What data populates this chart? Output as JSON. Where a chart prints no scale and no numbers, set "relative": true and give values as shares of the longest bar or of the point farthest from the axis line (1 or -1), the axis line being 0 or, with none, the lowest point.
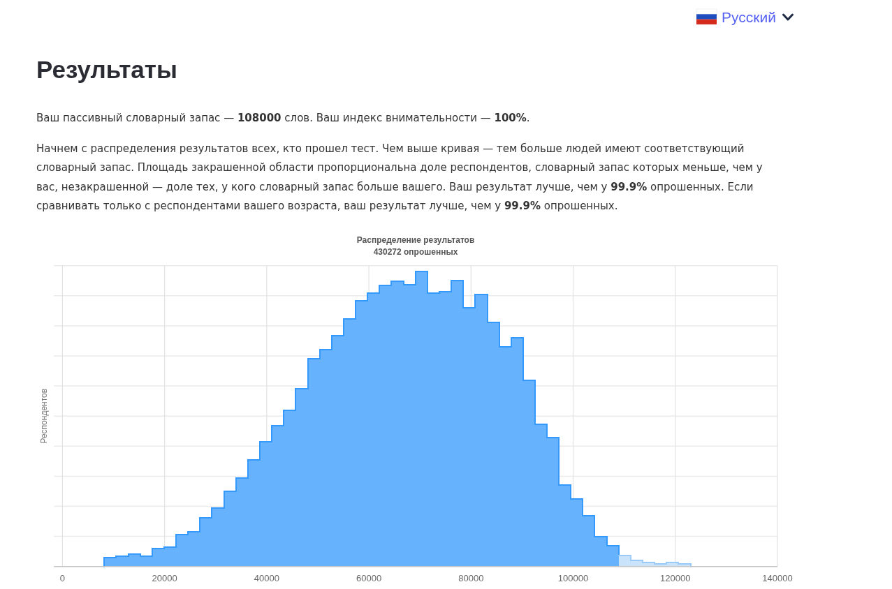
{
  "chart_data": {
    "type": "bar",
    "title": "Распределение результатов",
    "subtitle": "430272 опрошенных",
    "ylabel": "Респондентов",
    "annotations": [
      "Русский",
      "Результаты",
      "Ваш пассивный словарный запас — 108000 слов. Ваш индекс внимательности — 100%.",
      "Начнем с распределения результатов всех, кто прошел тест. Чем выше кривая — тем больше людей имеют соответствующий словарный запас. Площадь закрашенной области пропорциональна доле респондентов, словарный запас которых меньше, чем у вас, незакрашенной — доле тех, у кого словарный запас больше вашего. Ваш результат лучше, чем у 99.9% опрошенных. Если сравнивать только с респондентами вашего возраста, ваш результат лучше, чем у 99.9% опрошенных."
    ],
    "x": [
      9350,
      11700,
      14050,
      16400,
      18750,
      21100,
      23450,
      25750,
      28100,
      30450,
      32800,
      35150,
      37500,
      39850,
      42150,
      44500,
      46850,
      49200,
      51550,
      53900,
      56250,
      58550,
      60900,
      63250,
      65600,
      67950,
      70300,
      72650,
      74950,
      77300,
      79650,
      82000,
      84350,
      86650,
      89000,
      91350,
      93700,
      96050,
      98400,
      100750,
      103050,
      105400,
      107750,
      110100,
      112450,
      114800,
      117150,
      119450,
      121800
    ],
    "values": [
      0.03,
      0.035,
      0.041,
      0.034,
      0.06,
      0.066,
      0.109,
      0.117,
      0.166,
      0.197,
      0.254,
      0.3,
      0.361,
      0.422,
      0.478,
      0.529,
      0.604,
      0.704,
      0.736,
      0.784,
      0.839,
      0.901,
      0.927,
      0.953,
      0.968,
      0.955,
      1,
      0.927,
      0.933,
      0.971,
      0.878,
      0.922,
      0.827,
      0.746,
      0.777,
      0.631,
      0.483,
      0.438,
      0.276,
      0.229,
      0.171,
      0.101,
      0.07,
      0.038,
      0.02,
      0.014,
      0.009,
      0.013,
      0.009
    ],
    "colors": [
      "#66b2fd",
      "#66b2fd",
      "#66b2fd",
      "#66b2fd",
      "#66b2fd",
      "#66b2fd",
      "#66b2fd",
      "#66b2fd",
      "#66b2fd",
      "#66b2fd",
      "#66b2fd",
      "#66b2fd",
      "#66b2fd",
      "#66b2fd",
      "#66b2fd",
      "#66b2fd",
      "#66b2fd",
      "#66b2fd",
      "#66b2fd",
      "#66b2fd",
      "#66b2fd",
      "#66b2fd",
      "#66b2fd",
      "#66b2fd",
      "#66b2fd",
      "#66b2fd",
      "#66b2fd",
      "#66b2fd",
      "#66b2fd",
      "#66b2fd",
      "#66b2fd",
      "#66b2fd",
      "#66b2fd",
      "#66b2fd",
      "#66b2fd",
      "#66b2fd",
      "#66b2fd",
      "#66b2fd",
      "#66b2fd",
      "#66b2fd",
      "#66b2fd",
      "#66b2fd",
      "#66b2fd",
      "#c9e3fb",
      "#c9e3fb",
      "#c9e3fb",
      "#c9e3fb",
      "#c9e3fb",
      "#c9e3fb"
    ],
    "relative": true,
    "xlim": [
      -1700,
      140000
    ],
    "xticks": [
      0,
      20000,
      40000,
      60000,
      80000,
      100000,
      120000,
      140000
    ],
    "grid": true
  }
}
